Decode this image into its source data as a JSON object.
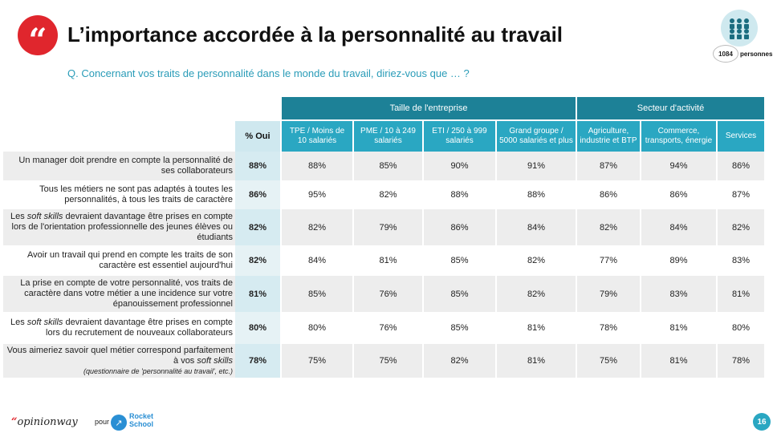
{
  "header": {
    "quote_glyph": "“",
    "title": "L’importance accordée à la personnalité au travail",
    "question": "Q. Concernant vos traits de personnalité dans le monde du travail, diriez-vous que … ?"
  },
  "badge": {
    "icon": "people-group-icon",
    "count": "1084",
    "label": "personnes",
    "color": "#cfe9ef"
  },
  "table": {
    "groups": [
      "Taille de l'entreprise",
      "Secteur d'activité"
    ],
    "columns": [
      "% Oui",
      "TPE / Moins de 10 salariés",
      "PME / 10 à 249 salariés",
      "ETI / 250 à 999 salariés",
      "Grand groupe / 5000 salariés et plus",
      "Agriculture, industrie et BTP",
      "Commerce, transports, énergie",
      "Services"
    ],
    "rows": [
      {
        "pre": "Un manager doit prendre en compte la personnalité de ses collaborateurs",
        "italic": "",
        "post": "",
        "note": "",
        "values": [
          "88%",
          "88%",
          "85%",
          "90%",
          "91%",
          "87%",
          "94%",
          "86%"
        ]
      },
      {
        "pre": "Tous les métiers ne sont pas adaptés à toutes les personnalités, à tous les traits de caractère",
        "italic": "",
        "post": "",
        "note": "",
        "values": [
          "86%",
          "95%",
          "82%",
          "88%",
          "88%",
          "86%",
          "86%",
          "87%"
        ]
      },
      {
        "pre": "Les ",
        "italic": "soft skills",
        "post": " devraient davantage être prises en compte lors de l'orientation professionnelle des jeunes élèves ou étudiants",
        "note": "",
        "values": [
          "82%",
          "82%",
          "79%",
          "86%",
          "84%",
          "82%",
          "84%",
          "82%"
        ]
      },
      {
        "pre": "Avoir un travail qui prend en compte les traits de son caractère est essentiel aujourd'hui",
        "italic": "",
        "post": "",
        "note": "",
        "values": [
          "82%",
          "84%",
          "81%",
          "85%",
          "82%",
          "77%",
          "89%",
          "83%"
        ]
      },
      {
        "pre": "La prise en compte de votre personnalité, vos traits de caractère dans votre métier a une incidence sur votre épanouissement professionnel",
        "italic": "",
        "post": "",
        "note": "",
        "values": [
          "81%",
          "85%",
          "76%",
          "85%",
          "82%",
          "79%",
          "83%",
          "81%"
        ]
      },
      {
        "pre": "Les ",
        "italic": "soft skills",
        "post": " devraient davantage être prises en compte lors du recrutement de nouveaux collaborateurs",
        "note": "",
        "values": [
          "80%",
          "80%",
          "76%",
          "85%",
          "81%",
          "78%",
          "81%",
          "80%"
        ]
      },
      {
        "pre": "Vous aimeriez savoir quel métier correspond parfaitement à vos ",
        "italic": "soft skills",
        "post": "",
        "note": "(questionnaire de 'personnalité au travail', etc.)",
        "values": [
          "78%",
          "75%",
          "75%",
          "82%",
          "81%",
          "75%",
          "81%",
          "78%"
        ]
      }
    ]
  },
  "footer": {
    "logo_mark": "“",
    "logo_text": "opinionway",
    "pour": "pour",
    "rocket_icon": "rocket-icon",
    "rocket_line1": "Rocket",
    "rocket_line2": "School",
    "page_number": "16"
  },
  "colors": {
    "accent_red": "#e0262d",
    "header_dark": "#1d8197",
    "header_light": "#2aa7c2",
    "question_text": "#2a9cb8"
  }
}
